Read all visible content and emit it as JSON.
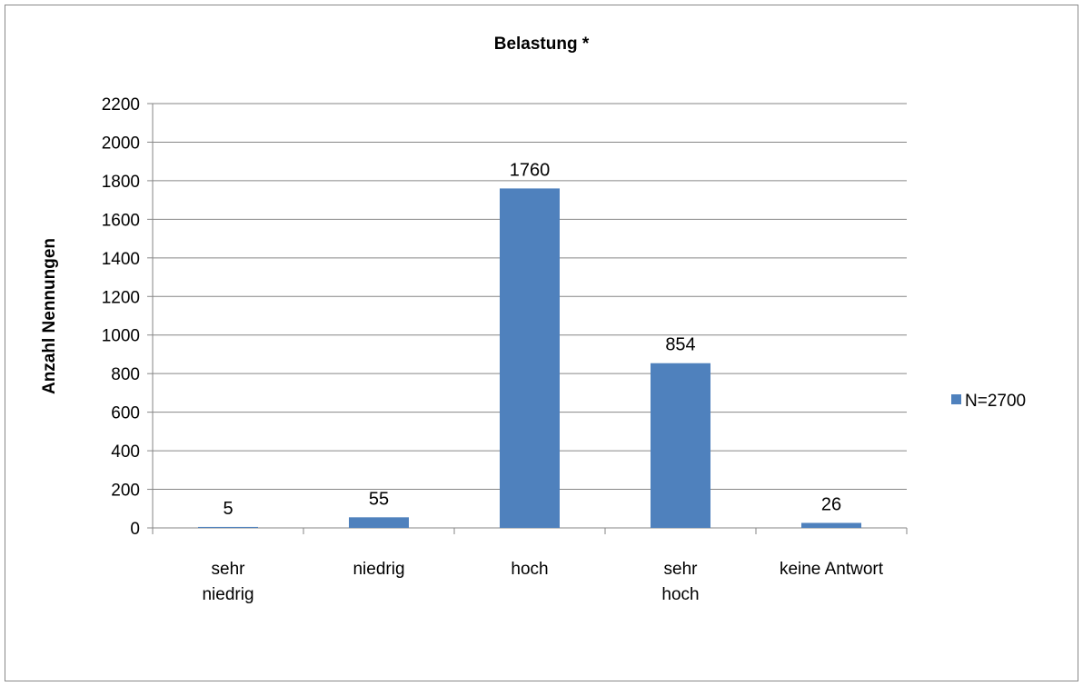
{
  "chart_data": {
    "type": "bar",
    "title": "Belastung *",
    "y_label": "Anzahl Nennungen",
    "categories": [
      "sehr\nniedrig",
      "niedrig",
      "hoch",
      "sehr\nhoch",
      "keine Antwort"
    ],
    "series": [
      {
        "name": "N=2700",
        "color": "#4f81bd",
        "values": [
          5,
          55,
          1760,
          854,
          26
        ]
      }
    ],
    "ylim": [
      0,
      2200
    ],
    "yticks": [
      0,
      200,
      400,
      600,
      800,
      1000,
      1200,
      1400,
      1600,
      1800,
      2000,
      2200
    ],
    "grid": true,
    "legend": "right"
  }
}
